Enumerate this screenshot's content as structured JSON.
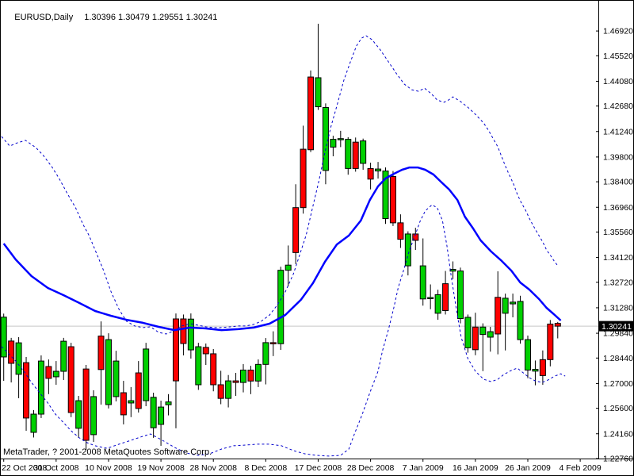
{
  "header": {
    "symbol_period": "EURUSD,Daily",
    "ohlc": "1.30396 1.30479 1.29551 1.30241"
  },
  "footer": {
    "credit": "MetaTrader, ? 2001-2008 MetaQuotes Software Corp."
  },
  "axis": {
    "current_price": "1.30241"
  },
  "colors": {
    "background": "#ffffff",
    "frame": "#000000",
    "bull_candle": "#00d000",
    "bear_candle": "#ff0000",
    "wick": "#000000",
    "ma_line": "#0000ff",
    "band_line": "#0000cc",
    "current_price_line": "#c6c6c6",
    "badge_bg": "#000000",
    "badge_text": "#ffffff",
    "axis_text": "#000000"
  },
  "chart_data": {
    "type": "candlestick",
    "title": "EURUSD,Daily",
    "symbol": "EURUSD",
    "timeframe": "Daily",
    "current_bar": {
      "open": 1.30396,
      "high": 1.30479,
      "low": 1.29551,
      "close": 1.30241
    },
    "ylim": [
      1.2276,
      1.48134
    ],
    "grid": false,
    "y_axis_labels": [
      "1.46920",
      "1.45520",
      "1.44080",
      "1.42680",
      "1.41240",
      "1.39800",
      "1.38400",
      "1.36960",
      "1.35560",
      "1.34120",
      "1.32720",
      "1.31280",
      "1.29840",
      "1.28440",
      "1.27000",
      "1.25600",
      "1.24160",
      "1.22760"
    ],
    "x_axis_labels": [
      "22 Oct 2008",
      "31 Oct 2008",
      "10 Nov 2008",
      "19 Nov 2008",
      "28 Nov 2008",
      "8 Dec 2008",
      "17 Dec 2008",
      "28 Dec 2008",
      "7 Jan 2009",
      "16 Jan 2009",
      "26 Jan 2009",
      "4 Feb 2009"
    ],
    "x_tick_bars": [
      0,
      7,
      14,
      21,
      28,
      35,
      42,
      49,
      56,
      63,
      70,
      77
    ],
    "candles": [
      [
        1.285,
        1.3095,
        1.2715,
        1.3075
      ],
      [
        1.294,
        1.2958,
        1.2706,
        1.2814
      ],
      [
        1.2752,
        1.2962,
        1.2617,
        1.293
      ],
      [
        1.2818,
        1.285,
        1.2433,
        1.2505
      ],
      [
        1.2424,
        1.255,
        1.2395,
        1.2527
      ],
      [
        1.2527,
        1.2859,
        1.2505,
        1.2827
      ],
      [
        1.2796,
        1.2836,
        1.264,
        1.2729
      ],
      [
        1.2738,
        1.2827,
        1.2693,
        1.2769
      ],
      [
        1.2769,
        1.2958,
        1.272,
        1.2939
      ],
      [
        1.2908,
        1.293,
        1.251,
        1.2536
      ],
      [
        1.2447,
        1.263,
        1.2393,
        1.2603
      ],
      [
        1.2782,
        1.2805,
        1.2325,
        1.2379
      ],
      [
        1.2411,
        1.2662,
        1.237,
        1.2626
      ],
      [
        1.2968,
        1.3051,
        1.2581,
        1.2779
      ],
      [
        1.2581,
        1.2984,
        1.2559,
        1.2948
      ],
      [
        1.2626,
        1.2885,
        1.2599,
        1.2827
      ],
      [
        1.2648,
        1.2715,
        1.2469,
        1.2523
      ],
      [
        1.259,
        1.268,
        1.251,
        1.2603
      ],
      [
        1.276,
        1.2827,
        1.2536,
        1.2559
      ],
      [
        1.2603,
        1.293,
        1.2572,
        1.2895
      ],
      [
        1.245,
        1.2648,
        1.2393,
        1.2622
      ],
      [
        1.2469,
        1.2603,
        1.2348,
        1.2567
      ],
      [
        1.258,
        1.264,
        1.252,
        1.2596
      ],
      [
        1.3065,
        1.3096,
        1.2447,
        1.2715
      ],
      [
        1.3065,
        1.309,
        1.2859,
        1.2926
      ],
      [
        1.289,
        1.3096,
        1.2841,
        1.3064
      ],
      [
        1.2693,
        1.293,
        1.2664,
        1.2908
      ],
      [
        1.2904,
        1.2926,
        1.2805,
        1.2868
      ],
      [
        1.2868,
        1.2895,
        1.2656,
        1.2693
      ],
      [
        1.2693,
        1.2772,
        1.2583,
        1.2616
      ],
      [
        1.2616,
        1.2748,
        1.2565,
        1.2715
      ],
      [
        1.2715,
        1.276,
        1.263,
        1.2706
      ],
      [
        1.2706,
        1.281,
        1.265,
        1.2776
      ],
      [
        1.2776,
        1.28,
        1.264,
        1.2714
      ],
      [
        1.2714,
        1.2836,
        1.268,
        1.2808
      ],
      [
        1.2808,
        1.2957,
        1.2695,
        1.2931
      ],
      [
        1.2931,
        1.2995,
        1.2855,
        1.2925
      ],
      [
        1.2925,
        1.336,
        1.289,
        1.334
      ],
      [
        1.334,
        1.348,
        1.325,
        1.3369
      ],
      [
        1.3694,
        1.3826,
        1.3375,
        1.344
      ],
      [
        1.4024,
        1.4157,
        1.366,
        1.3694
      ],
      [
        1.4432,
        1.4469,
        1.4008,
        1.4021
      ],
      [
        1.4264,
        1.4733,
        1.4246,
        1.4428
      ],
      [
        1.3904,
        1.4283,
        1.3826,
        1.426
      ],
      [
        1.4036,
        1.41,
        1.3984,
        1.408
      ],
      [
        1.408,
        1.4128,
        1.4036,
        1.4084
      ],
      [
        1.3915,
        1.4092,
        1.388,
        1.408
      ],
      [
        1.4064,
        1.409,
        1.3897,
        1.3915
      ],
      [
        1.3944,
        1.4084,
        1.3908,
        1.4071
      ],
      [
        1.3915,
        1.3948,
        1.3797,
        1.3855
      ],
      [
        1.3901,
        1.3952,
        1.3858,
        1.3912
      ],
      [
        1.3632,
        1.3921,
        1.3602,
        1.3901
      ],
      [
        1.387,
        1.3901,
        1.359,
        1.3608
      ],
      [
        1.3608,
        1.3656,
        1.3466,
        1.3515
      ],
      [
        1.3365,
        1.356,
        1.3311,
        1.3545
      ],
      [
        1.3545,
        1.358,
        1.3455,
        1.3509
      ],
      [
        1.3178,
        1.352,
        1.314,
        1.3365
      ],
      [
        1.318,
        1.326,
        1.312,
        1.3186
      ],
      [
        1.3097,
        1.323,
        1.306,
        1.3202
      ],
      [
        1.3264,
        1.3336,
        1.309,
        1.3112
      ],
      [
        1.3335,
        1.339,
        1.329,
        1.3345
      ],
      [
        1.3067,
        1.3355,
        1.304,
        1.3336
      ],
      [
        1.2902,
        1.309,
        1.2874,
        1.3074
      ],
      [
        1.3019,
        1.31,
        1.286,
        1.2891
      ],
      [
        1.2977,
        1.304,
        1.277,
        1.3019
      ],
      [
        1.2962,
        1.302,
        1.288,
        1.2993
      ],
      [
        1.3187,
        1.3334,
        1.2865,
        1.298
      ],
      [
        1.3097,
        1.3208,
        1.2887,
        1.3182
      ],
      [
        1.315,
        1.3208,
        1.3074,
        1.316
      ],
      [
        1.2948,
        1.3196,
        1.2925,
        1.3164
      ],
      [
        1.2776,
        1.2971,
        1.273,
        1.2948
      ],
      [
        1.277,
        1.283,
        1.269,
        1.278
      ],
      [
        1.2835,
        1.2887,
        1.2693,
        1.2745
      ],
      [
        1.3036,
        1.3059,
        1.2797,
        1.2835
      ],
      [
        1.30396,
        1.30479,
        1.29551,
        1.30241
      ]
    ],
    "moving_average": [
      [
        0,
        1.3491
      ],
      [
        1.6,
        1.3401
      ],
      [
        3.7,
        1.3307
      ],
      [
        5.9,
        1.324
      ],
      [
        8,
        1.3199
      ],
      [
        10.1,
        1.3155
      ],
      [
        12.2,
        1.311
      ],
      [
        14.3,
        1.3083
      ],
      [
        16.4,
        1.306
      ],
      [
        18.6,
        1.3043
      ],
      [
        20.7,
        1.302
      ],
      [
        22.8,
        1.3002
      ],
      [
        24.9,
        1.3016
      ],
      [
        27,
        1.3011
      ],
      [
        29.1,
        1.3002
      ],
      [
        31.3,
        1.3007
      ],
      [
        33.4,
        1.3016
      ],
      [
        35.5,
        1.3038
      ],
      [
        37.6,
        1.3087
      ],
      [
        39.7,
        1.3173
      ],
      [
        41.3,
        1.3267
      ],
      [
        42.9,
        1.3388
      ],
      [
        44.5,
        1.3486
      ],
      [
        46.1,
        1.3536
      ],
      [
        47.7,
        1.3621
      ],
      [
        48.9,
        1.3737
      ],
      [
        50,
        1.3814
      ],
      [
        51,
        1.3859
      ],
      [
        52.1,
        1.3885
      ],
      [
        53.2,
        1.3908
      ],
      [
        54.2,
        1.3921
      ],
      [
        55.3,
        1.3921
      ],
      [
        56.3,
        1.3908
      ],
      [
        57.4,
        1.3881
      ],
      [
        58.5,
        1.3836
      ],
      [
        59.5,
        1.3796
      ],
      [
        60.6,
        1.3737
      ],
      [
        61.6,
        1.3643
      ],
      [
        62.7,
        1.3576
      ],
      [
        63.7,
        1.3509
      ],
      [
        65.1,
        1.3446
      ],
      [
        66.4,
        1.3397
      ],
      [
        67.8,
        1.3338
      ],
      [
        69,
        1.3271
      ],
      [
        70.2,
        1.3231
      ],
      [
        71.5,
        1.3177
      ],
      [
        72.5,
        1.3128
      ],
      [
        73.6,
        1.3087
      ],
      [
        74.4,
        1.3056
      ]
    ],
    "bollinger_upper": [
      [
        -0.3,
        1.4096
      ],
      [
        0.8,
        1.4042
      ],
      [
        1.8,
        1.406
      ],
      [
        2.9,
        1.4074
      ],
      [
        4.3,
        1.4033
      ],
      [
        5.3,
        1.3988
      ],
      [
        6.4,
        1.3926
      ],
      [
        7.4,
        1.3859
      ],
      [
        8.5,
        1.3773
      ],
      [
        9.6,
        1.3693
      ],
      [
        10.6,
        1.3599
      ],
      [
        11.4,
        1.3536
      ],
      [
        12.2,
        1.3455
      ],
      [
        13.3,
        1.3343
      ],
      [
        14.3,
        1.3222
      ],
      [
        15.4,
        1.3119
      ],
      [
        16.4,
        1.3052
      ],
      [
        17.5,
        1.3025
      ],
      [
        18.6,
        1.3016
      ],
      [
        19.6,
        1.302
      ],
      [
        20.7,
        1.2989
      ],
      [
        21.7,
        1.298
      ],
      [
        22.8,
        1.2998
      ],
      [
        23.8,
        1.3025
      ],
      [
        24.9,
        1.3038
      ],
      [
        26,
        1.3029
      ],
      [
        27,
        1.302
      ],
      [
        28.1,
        1.3016
      ],
      [
        29.1,
        1.3016
      ],
      [
        30.2,
        1.302
      ],
      [
        31.3,
        1.3025
      ],
      [
        32.3,
        1.3025
      ],
      [
        33.4,
        1.3034
      ],
      [
        34.4,
        1.3052
      ],
      [
        35.5,
        1.3087
      ],
      [
        36.5,
        1.3141
      ],
      [
        37.6,
        1.3217
      ],
      [
        38.7,
        1.332
      ],
      [
        39.5,
        1.3424
      ],
      [
        40.4,
        1.354
      ],
      [
        41.2,
        1.3684
      ],
      [
        42.1,
        1.3845
      ],
      [
        42.9,
        1.4007
      ],
      [
        43.7,
        1.415
      ],
      [
        44.6,
        1.4284
      ],
      [
        45.4,
        1.441
      ],
      [
        46.3,
        1.4517
      ],
      [
        47.1,
        1.4607
      ],
      [
        47.8,
        1.4652
      ],
      [
        48.4,
        1.4665
      ],
      [
        49.2,
        1.4643
      ],
      [
        50.3,
        1.4585
      ],
      [
        51.4,
        1.4517
      ],
      [
        52.4,
        1.4455
      ],
      [
        53.5,
        1.4392
      ],
      [
        54.5,
        1.436
      ],
      [
        55.4,
        1.4351
      ],
      [
        56.2,
        1.4369
      ],
      [
        57.1,
        1.4338
      ],
      [
        57.9,
        1.4302
      ],
      [
        58.8,
        1.4289
      ],
      [
        59.4,
        1.4302
      ],
      [
        60,
        1.432
      ],
      [
        60.9,
        1.4297
      ],
      [
        62,
        1.4261
      ],
      [
        63,
        1.4221
      ],
      [
        64.1,
        1.4172
      ],
      [
        64.8,
        1.4127
      ],
      [
        65.4,
        1.4082
      ],
      [
        66,
        1.4037
      ],
      [
        66.5,
        1.3983
      ],
      [
        67,
        1.393
      ],
      [
        67.5,
        1.3881
      ],
      [
        68.1,
        1.3827
      ],
      [
        68.6,
        1.3769
      ],
      [
        69.1,
        1.3724
      ],
      [
        69.7,
        1.3679
      ],
      [
        70.2,
        1.3634
      ],
      [
        70.7,
        1.3594
      ],
      [
        71.3,
        1.3549
      ],
      [
        72,
        1.35
      ],
      [
        72.5,
        1.3455
      ],
      [
        73.1,
        1.3419
      ],
      [
        73.6,
        1.3387
      ],
      [
        74.1,
        1.3361
      ]
    ],
    "bollinger_lower": [
      [
        -0.3,
        1.2908
      ],
      [
        0.6,
        1.2872
      ],
      [
        1.6,
        1.2827
      ],
      [
        2.7,
        1.2769
      ],
      [
        3.7,
        1.2706
      ],
      [
        4.8,
        1.2648
      ],
      [
        5.9,
        1.259
      ],
      [
        6.9,
        1.2527
      ],
      [
        8,
        1.2478
      ],
      [
        9,
        1.2433
      ],
      [
        10.1,
        1.2393
      ],
      [
        11.1,
        1.2366
      ],
      [
        12.2,
        1.2348
      ],
      [
        13.8,
        1.2334
      ],
      [
        15.4,
        1.2357
      ],
      [
        17,
        1.2379
      ],
      [
        18.6,
        1.2402
      ],
      [
        19.6,
        1.2415
      ],
      [
        21.2,
        1.2379
      ],
      [
        22.8,
        1.2339
      ],
      [
        24.4,
        1.2307
      ],
      [
        26,
        1.2294
      ],
      [
        27.5,
        1.2303
      ],
      [
        29.1,
        1.233
      ],
      [
        30.7,
        1.2348
      ],
      [
        32.3,
        1.2352
      ],
      [
        33.9,
        1.2357
      ],
      [
        35.5,
        1.2357
      ],
      [
        37.1,
        1.2348
      ],
      [
        38.7,
        1.2321
      ],
      [
        40.2,
        1.2303
      ],
      [
        41.8,
        1.2294
      ],
      [
        43.4,
        1.229
      ],
      [
        45,
        1.2294
      ],
      [
        46.1,
        1.233
      ],
      [
        46.8,
        1.241
      ],
      [
        47.9,
        1.2527
      ],
      [
        48.9,
        1.2648
      ],
      [
        50,
        1.2769
      ],
      [
        50.6,
        1.2886
      ],
      [
        51.4,
        1.3007
      ],
      [
        52.1,
        1.3128
      ],
      [
        52.7,
        1.3244
      ],
      [
        53.5,
        1.3352
      ],
      [
        54.2,
        1.3455
      ],
      [
        54.9,
        1.3531
      ],
      [
        55.6,
        1.3616
      ],
      [
        56.3,
        1.3675
      ],
      [
        57.2,
        1.371
      ],
      [
        57.9,
        1.3693
      ],
      [
        58.6,
        1.3621
      ],
      [
        59.2,
        1.3477
      ],
      [
        59.8,
        1.3298
      ],
      [
        60.5,
        1.311
      ],
      [
        61.1,
        1.2962
      ],
      [
        62,
        1.2841
      ],
      [
        63,
        1.2769
      ],
      [
        64.1,
        1.2724
      ],
      [
        65.1,
        1.2711
      ],
      [
        66,
        1.2724
      ],
      [
        66.8,
        1.2751
      ],
      [
        67.8,
        1.2774
      ],
      [
        68.6,
        1.2787
      ],
      [
        69.4,
        1.276
      ],
      [
        70.2,
        1.2733
      ],
      [
        71,
        1.2715
      ],
      [
        71.9,
        1.2706
      ],
      [
        72.7,
        1.272
      ],
      [
        73.6,
        1.2742
      ],
      [
        74.4,
        1.2755
      ],
      [
        75,
        1.2742
      ]
    ]
  }
}
